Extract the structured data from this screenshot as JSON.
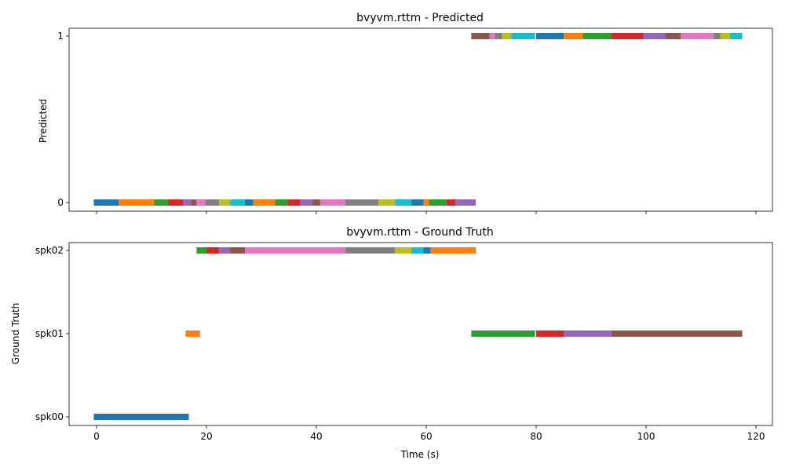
{
  "chart_data": [
    {
      "type": "timeline",
      "title": "bvyvm.rttm - Predicted",
      "xlabel": "",
      "ylabel": "Predicted",
      "xlim": [
        -5,
        123
      ],
      "xticks": [
        0,
        20,
        40,
        60,
        80,
        100,
        120
      ],
      "xtick_labels_visible": false,
      "yticks": [
        "0",
        "1"
      ],
      "segments": [
        {
          "row": "0",
          "start": -0.5,
          "end": 4.0,
          "color": "#1f77b4"
        },
        {
          "row": "0",
          "start": 4.0,
          "end": 10.5,
          "color": "#ff7f0e"
        },
        {
          "row": "0",
          "start": 10.5,
          "end": 13.0,
          "color": "#2ca02c"
        },
        {
          "row": "0",
          "start": 13.0,
          "end": 15.8,
          "color": "#d62728"
        },
        {
          "row": "0",
          "start": 15.8,
          "end": 17.2,
          "color": "#9467bd"
        },
        {
          "row": "0",
          "start": 17.2,
          "end": 18.2,
          "color": "#8c564b"
        },
        {
          "row": "0",
          "start": 18.2,
          "end": 19.8,
          "color": "#e377c2"
        },
        {
          "row": "0",
          "start": 19.8,
          "end": 22.3,
          "color": "#7f7f7f"
        },
        {
          "row": "0",
          "start": 22.3,
          "end": 24.3,
          "color": "#bcbd22"
        },
        {
          "row": "0",
          "start": 24.3,
          "end": 27.0,
          "color": "#17becf"
        },
        {
          "row": "0",
          "start": 27.0,
          "end": 28.5,
          "color": "#1f77b4"
        },
        {
          "row": "0",
          "start": 28.5,
          "end": 32.5,
          "color": "#ff7f0e"
        },
        {
          "row": "0",
          "start": 32.5,
          "end": 34.8,
          "color": "#2ca02c"
        },
        {
          "row": "0",
          "start": 34.8,
          "end": 37.0,
          "color": "#d62728"
        },
        {
          "row": "0",
          "start": 37.0,
          "end": 39.3,
          "color": "#9467bd"
        },
        {
          "row": "0",
          "start": 39.3,
          "end": 40.7,
          "color": "#8c564b"
        },
        {
          "row": "0",
          "start": 40.7,
          "end": 45.3,
          "color": "#e377c2"
        },
        {
          "row": "0",
          "start": 45.3,
          "end": 51.3,
          "color": "#7f7f7f"
        },
        {
          "row": "0",
          "start": 51.3,
          "end": 54.3,
          "color": "#bcbd22"
        },
        {
          "row": "0",
          "start": 54.3,
          "end": 57.3,
          "color": "#17becf"
        },
        {
          "row": "0",
          "start": 57.3,
          "end": 59.5,
          "color": "#1f77b4"
        },
        {
          "row": "0",
          "start": 59.5,
          "end": 60.5,
          "color": "#ff7f0e"
        },
        {
          "row": "0",
          "start": 60.5,
          "end": 63.7,
          "color": "#2ca02c"
        },
        {
          "row": "0",
          "start": 63.7,
          "end": 65.3,
          "color": "#d62728"
        },
        {
          "row": "0",
          "start": 65.3,
          "end": 69.0,
          "color": "#9467bd"
        },
        {
          "row": "1",
          "start": 68.2,
          "end": 71.5,
          "color": "#8c564b"
        },
        {
          "row": "1",
          "start": 71.5,
          "end": 72.5,
          "color": "#e377c2"
        },
        {
          "row": "1",
          "start": 72.5,
          "end": 73.8,
          "color": "#7f7f7f"
        },
        {
          "row": "1",
          "start": 73.8,
          "end": 75.5,
          "color": "#bcbd22"
        },
        {
          "row": "1",
          "start": 75.5,
          "end": 79.8,
          "color": "#17becf"
        },
        {
          "row": "1",
          "start": 80.0,
          "end": 85.0,
          "color": "#1f77b4"
        },
        {
          "row": "1",
          "start": 85.0,
          "end": 88.5,
          "color": "#ff7f0e"
        },
        {
          "row": "1",
          "start": 88.5,
          "end": 93.7,
          "color": "#2ca02c"
        },
        {
          "row": "1",
          "start": 93.7,
          "end": 99.5,
          "color": "#d62728"
        },
        {
          "row": "1",
          "start": 99.5,
          "end": 103.5,
          "color": "#9467bd"
        },
        {
          "row": "1",
          "start": 103.5,
          "end": 106.3,
          "color": "#8c564b"
        },
        {
          "row": "1",
          "start": 106.3,
          "end": 112.3,
          "color": "#e377c2"
        },
        {
          "row": "1",
          "start": 112.3,
          "end": 113.5,
          "color": "#7f7f7f"
        },
        {
          "row": "1",
          "start": 113.5,
          "end": 115.3,
          "color": "#bcbd22"
        },
        {
          "row": "1",
          "start": 115.3,
          "end": 117.5,
          "color": "#17becf"
        }
      ]
    },
    {
      "type": "timeline",
      "title": "bvyvm.rttm - Ground Truth",
      "xlabel": "Time (s)",
      "ylabel": "Ground Truth",
      "xlim": [
        -5,
        123
      ],
      "xticks": [
        0,
        20,
        40,
        60,
        80,
        100,
        120
      ],
      "xtick_labels_visible": true,
      "yticks": [
        "spk00",
        "spk01",
        "spk02"
      ],
      "segments": [
        {
          "row": "spk00",
          "start": -0.5,
          "end": 16.8,
          "color": "#1f77b4"
        },
        {
          "row": "spk01",
          "start": 16.2,
          "end": 18.8,
          "color": "#ff7f0e"
        },
        {
          "row": "spk02",
          "start": 18.2,
          "end": 20.0,
          "color": "#2ca02c"
        },
        {
          "row": "spk02",
          "start": 20.0,
          "end": 22.3,
          "color": "#d62728"
        },
        {
          "row": "spk02",
          "start": 22.3,
          "end": 24.3,
          "color": "#9467bd"
        },
        {
          "row": "spk02",
          "start": 24.3,
          "end": 27.0,
          "color": "#8c564b"
        },
        {
          "row": "spk02",
          "start": 27.0,
          "end": 45.3,
          "color": "#e377c2"
        },
        {
          "row": "spk02",
          "start": 45.3,
          "end": 54.3,
          "color": "#7f7f7f"
        },
        {
          "row": "spk02",
          "start": 54.3,
          "end": 57.3,
          "color": "#bcbd22"
        },
        {
          "row": "spk02",
          "start": 57.3,
          "end": 59.5,
          "color": "#17becf"
        },
        {
          "row": "spk02",
          "start": 59.5,
          "end": 60.8,
          "color": "#1f77b4"
        },
        {
          "row": "spk02",
          "start": 60.8,
          "end": 69.0,
          "color": "#ff7f0e"
        },
        {
          "row": "spk01",
          "start": 68.2,
          "end": 79.8,
          "color": "#2ca02c"
        },
        {
          "row": "spk01",
          "start": 80.0,
          "end": 85.0,
          "color": "#d62728"
        },
        {
          "row": "spk01",
          "start": 85.0,
          "end": 93.7,
          "color": "#9467bd"
        },
        {
          "row": "spk01",
          "start": 93.7,
          "end": 117.5,
          "color": "#8c564b"
        }
      ]
    }
  ]
}
